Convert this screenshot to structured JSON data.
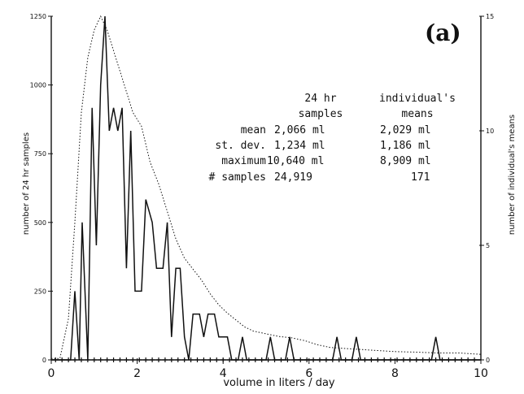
{
  "chart_data": {
    "type": "line",
    "panel_label": "(a)",
    "xlabel": "volume in liters / day",
    "ylabel_left": "number of 24 hr samples",
    "ylabel_right": "number of individual's means",
    "xlim": [
      0,
      10
    ],
    "ylim_left": [
      0,
      1250
    ],
    "ylim_right": [
      0,
      15
    ],
    "x_ticks": [
      0,
      2,
      4,
      6,
      8,
      10
    ],
    "left_ticks": [
      0,
      250,
      500,
      750,
      1000,
      1250
    ],
    "right_ticks": [
      0,
      5,
      10,
      15
    ],
    "grid": false,
    "series": [
      {
        "axis": "left",
        "style": "dotted",
        "points": [
          [
            0,
            5
          ],
          [
            0.2,
            5
          ],
          [
            0.4,
            150
          ],
          [
            0.55,
            500
          ],
          [
            0.7,
            900
          ],
          [
            0.85,
            1100
          ],
          [
            1.0,
            1200
          ],
          [
            1.15,
            1250
          ],
          [
            1.3,
            1200
          ],
          [
            1.5,
            1100
          ],
          [
            1.7,
            1000
          ],
          [
            1.9,
            900
          ],
          [
            2.1,
            850
          ],
          [
            2.3,
            720
          ],
          [
            2.5,
            640
          ],
          [
            2.7,
            540
          ],
          [
            2.9,
            440
          ],
          [
            3.1,
            370
          ],
          [
            3.3,
            330
          ],
          [
            3.5,
            290
          ],
          [
            3.7,
            240
          ],
          [
            3.9,
            200
          ],
          [
            4.1,
            170
          ],
          [
            4.3,
            145
          ],
          [
            4.5,
            120
          ],
          [
            4.7,
            105
          ],
          [
            5.0,
            95
          ],
          [
            5.3,
            85
          ],
          [
            5.6,
            80
          ],
          [
            5.9,
            70
          ],
          [
            6.2,
            55
          ],
          [
            6.5,
            45
          ],
          [
            7.0,
            40
          ],
          [
            7.5,
            35
          ],
          [
            8.0,
            30
          ],
          [
            8.5,
            28
          ],
          [
            9.0,
            25
          ],
          [
            9.5,
            25
          ],
          [
            10.0,
            20
          ]
        ]
      },
      {
        "axis": "right",
        "style": "solid",
        "points": [
          [
            0,
            0
          ],
          [
            0.45,
            0
          ],
          [
            0.55,
            3
          ],
          [
            0.65,
            0
          ],
          [
            0.72,
            6
          ],
          [
            0.85,
            0
          ],
          [
            0.95,
            11
          ],
          [
            1.05,
            5
          ],
          [
            1.15,
            12
          ],
          [
            1.25,
            15
          ],
          [
            1.35,
            10
          ],
          [
            1.45,
            11
          ],
          [
            1.55,
            10
          ],
          [
            1.65,
            11
          ],
          [
            1.75,
            4
          ],
          [
            1.85,
            10
          ],
          [
            1.95,
            3
          ],
          [
            2.1,
            3
          ],
          [
            2.2,
            7
          ],
          [
            2.35,
            6
          ],
          [
            2.45,
            4
          ],
          [
            2.6,
            4
          ],
          [
            2.7,
            6
          ],
          [
            2.8,
            1
          ],
          [
            2.9,
            4
          ],
          [
            3.0,
            4
          ],
          [
            3.1,
            1
          ],
          [
            3.2,
            0
          ],
          [
            3.3,
            2
          ],
          [
            3.45,
            2
          ],
          [
            3.55,
            1
          ],
          [
            3.65,
            2
          ],
          [
            3.8,
            2
          ],
          [
            3.9,
            1
          ],
          [
            4.1,
            1
          ],
          [
            4.2,
            0
          ],
          [
            4.35,
            0
          ],
          [
            4.45,
            1
          ],
          [
            4.55,
            0
          ],
          [
            5.0,
            0
          ],
          [
            5.1,
            1
          ],
          [
            5.2,
            0
          ],
          [
            5.45,
            0
          ],
          [
            5.55,
            1
          ],
          [
            5.65,
            0
          ],
          [
            6.55,
            0
          ],
          [
            6.65,
            1
          ],
          [
            6.75,
            0
          ],
          [
            7.0,
            0
          ],
          [
            7.1,
            1
          ],
          [
            7.2,
            0
          ],
          [
            8.85,
            0
          ],
          [
            8.95,
            1
          ],
          [
            9.05,
            0
          ],
          [
            10.0,
            0
          ]
        ]
      },
      {
        "axis": "left",
        "style": "plus-markers",
        "points": [
          [
            0.1,
            0
          ],
          [
            0.25,
            0
          ],
          [
            0.4,
            0
          ],
          [
            0.55,
            0
          ],
          [
            0.7,
            0
          ],
          [
            0.85,
            0
          ],
          [
            1.0,
            0
          ],
          [
            1.15,
            0
          ],
          [
            1.3,
            0
          ],
          [
            1.45,
            0
          ],
          [
            1.6,
            0
          ],
          [
            1.75,
            0
          ],
          [
            1.9,
            0
          ],
          [
            2.05,
            0
          ],
          [
            2.2,
            0
          ],
          [
            2.35,
            0
          ],
          [
            2.5,
            0
          ],
          [
            2.65,
            0
          ],
          [
            2.8,
            0
          ],
          [
            2.95,
            0
          ],
          [
            3.1,
            0
          ],
          [
            3.25,
            0
          ],
          [
            3.4,
            0
          ],
          [
            3.55,
            0
          ],
          [
            3.7,
            0
          ],
          [
            3.85,
            0
          ],
          [
            4.0,
            0
          ],
          [
            4.15,
            0
          ],
          [
            4.3,
            0
          ],
          [
            4.45,
            0
          ],
          [
            4.6,
            0
          ],
          [
            4.75,
            0
          ],
          [
            4.9,
            0
          ],
          [
            5.05,
            0
          ],
          [
            5.2,
            0
          ],
          [
            5.35,
            0
          ],
          [
            5.5,
            0
          ],
          [
            5.65,
            0
          ],
          [
            5.8,
            0
          ],
          [
            5.95,
            0
          ],
          [
            6.1,
            0
          ],
          [
            6.25,
            0
          ],
          [
            6.4,
            0
          ],
          [
            6.55,
            0
          ],
          [
            6.7,
            0
          ],
          [
            6.85,
            0
          ],
          [
            7.0,
            0
          ],
          [
            7.15,
            0
          ],
          [
            7.3,
            0
          ],
          [
            7.45,
            0
          ],
          [
            7.6,
            0
          ],
          [
            7.75,
            0
          ],
          [
            7.9,
            0
          ],
          [
            8.05,
            0
          ],
          [
            8.2,
            0
          ],
          [
            8.35,
            0
          ],
          [
            8.5,
            0
          ],
          [
            8.65,
            0
          ],
          [
            8.8,
            0
          ],
          [
            8.95,
            0
          ],
          [
            9.1,
            0
          ],
          [
            9.25,
            0
          ],
          [
            9.4,
            0
          ],
          [
            9.55,
            0
          ],
          [
            9.7,
            0
          ],
          [
            9.85,
            0
          ]
        ]
      }
    ],
    "stats_table": {
      "columns": [
        "24 hr",
        "individual's"
      ],
      "subcolumns": [
        "samples",
        "means"
      ],
      "rows": [
        {
          "label": "mean",
          "samples": "2,066  ml",
          "means": "2,029  ml"
        },
        {
          "label": "st. dev.",
          "samples": "1,234  ml",
          "means": "1,186  ml"
        },
        {
          "label": "maximum",
          "samples": "10,640  ml",
          "means": "8,909  ml"
        },
        {
          "label": "# samples",
          "samples": "24,919",
          "means": "171"
        }
      ]
    }
  }
}
